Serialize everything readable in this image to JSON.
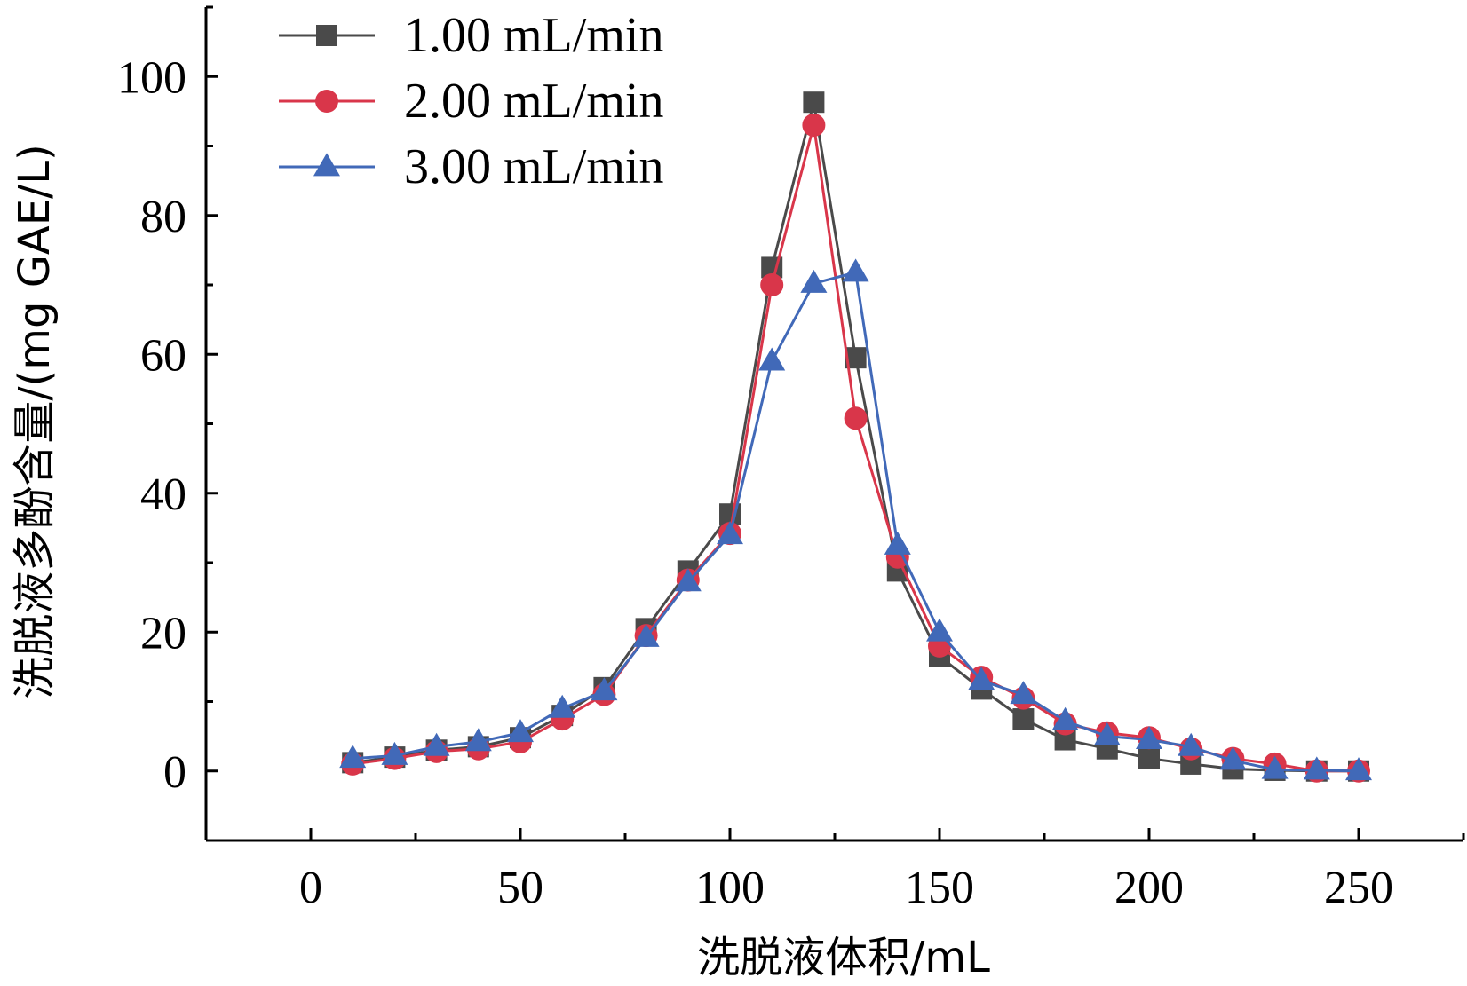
{
  "chart_data": {
    "type": "line",
    "title": "",
    "xlabel": "洗脱液体积/mL",
    "ylabel": "洗脱液多酚含量/(mg GAE/L)",
    "xlim": [
      -25,
      275
    ],
    "ylim": [
      -10,
      110
    ],
    "xticks": [
      0,
      50,
      100,
      150,
      200,
      250
    ],
    "yticks": [
      0,
      20,
      40,
      60,
      80,
      100
    ],
    "legend_position": "top-left",
    "grid": false,
    "x": [
      10,
      20,
      30,
      40,
      50,
      60,
      70,
      80,
      90,
      100,
      110,
      120,
      130,
      140,
      150,
      160,
      170,
      180,
      190,
      200,
      210,
      220,
      230,
      240,
      250
    ],
    "series": [
      {
        "name": "1.00 mL/min",
        "marker": "square",
        "color": "#4a4a4a",
        "values": [
          1.2,
          2.0,
          3.0,
          3.5,
          4.8,
          8.0,
          12.0,
          20.5,
          28.8,
          37.0,
          72.5,
          96.3,
          59.5,
          28.8,
          16.5,
          11.8,
          7.5,
          4.5,
          3.2,
          1.8,
          1.0,
          0.3,
          0.1,
          0.0,
          0.0
        ]
      },
      {
        "name": "2.00 mL/min",
        "marker": "circle",
        "color": "#d9364a",
        "values": [
          1.0,
          1.8,
          2.8,
          3.2,
          4.2,
          7.5,
          11.0,
          19.5,
          27.5,
          34.2,
          70.0,
          93.0,
          50.8,
          30.8,
          18.0,
          13.5,
          10.5,
          6.8,
          5.5,
          4.8,
          3.2,
          1.8,
          1.0,
          0.0,
          0.0
        ]
      },
      {
        "name": "3.00 mL/min",
        "marker": "triangle",
        "color": "#4169b8",
        "values": [
          1.8,
          2.2,
          3.5,
          4.2,
          5.5,
          9.0,
          11.5,
          19.2,
          27.2,
          34.0,
          59.0,
          70.2,
          71.8,
          32.5,
          20.0,
          13.0,
          11.0,
          7.2,
          5.0,
          4.5,
          3.5,
          1.5,
          0.2,
          0.1,
          0.0
        ]
      }
    ]
  }
}
